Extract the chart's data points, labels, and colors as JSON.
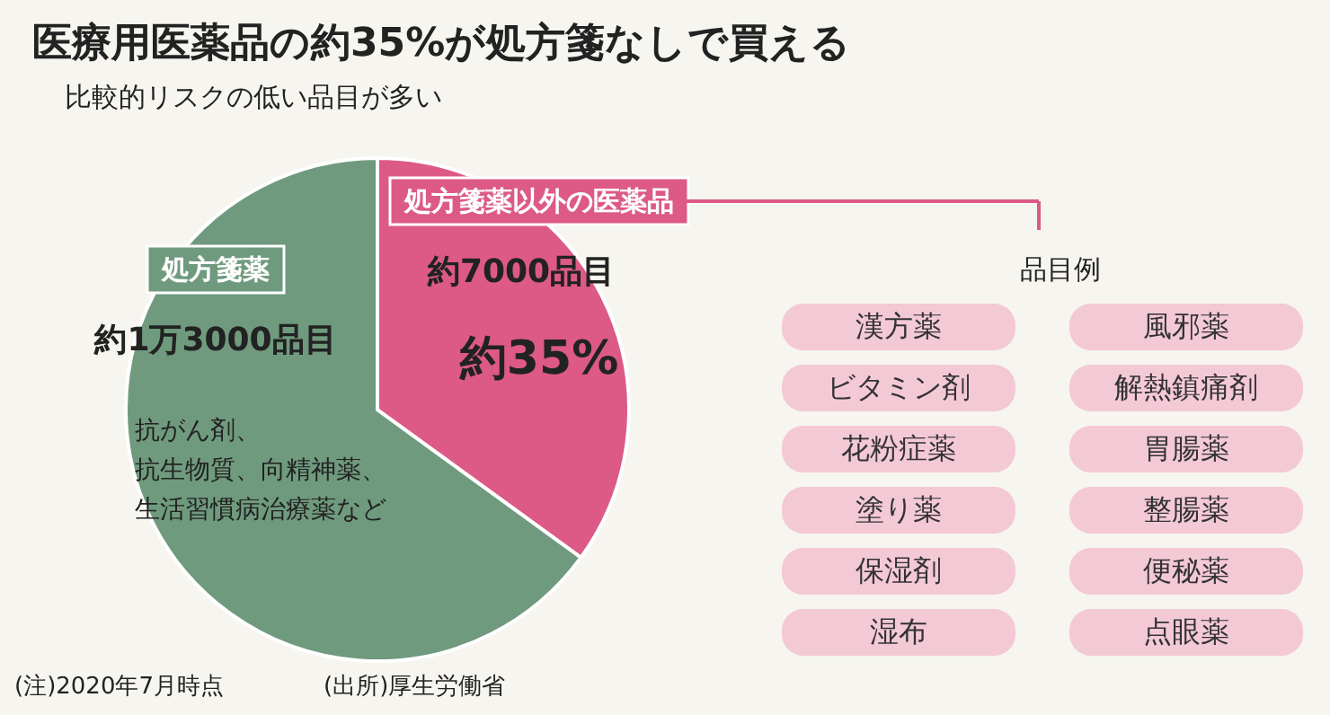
{
  "chart_data": {
    "type": "pie",
    "title": "医療用医薬品の約35%が処方箋なしで買える",
    "subtitle": "比較的リスクの低い品目が多い",
    "categories": [
      "処方箋薬",
      "処方箋薬以外の医薬品"
    ],
    "values": [
      65,
      35
    ],
    "colors": [
      "#6f9a7e",
      "#dc5a85"
    ],
    "value_labels": [
      null,
      "約35%"
    ],
    "annotations": [
      "約1万3000品目",
      "抗がん剤、",
      "抗生物質、向精神薬、",
      "生活習慣病治療薬など",
      "約7000品目",
      "品目例",
      "漢方薬",
      "風邪薬",
      "ビタミン剤",
      "解熱鎮痛剤",
      "花粉症薬",
      "胃腸薬",
      "塗り薬",
      "整腸薬",
      "保湿剤",
      "便秘薬",
      "湿布",
      "点眼薬",
      "(注)2020年7月時点",
      "(出所)厚生労働省"
    ]
  }
}
